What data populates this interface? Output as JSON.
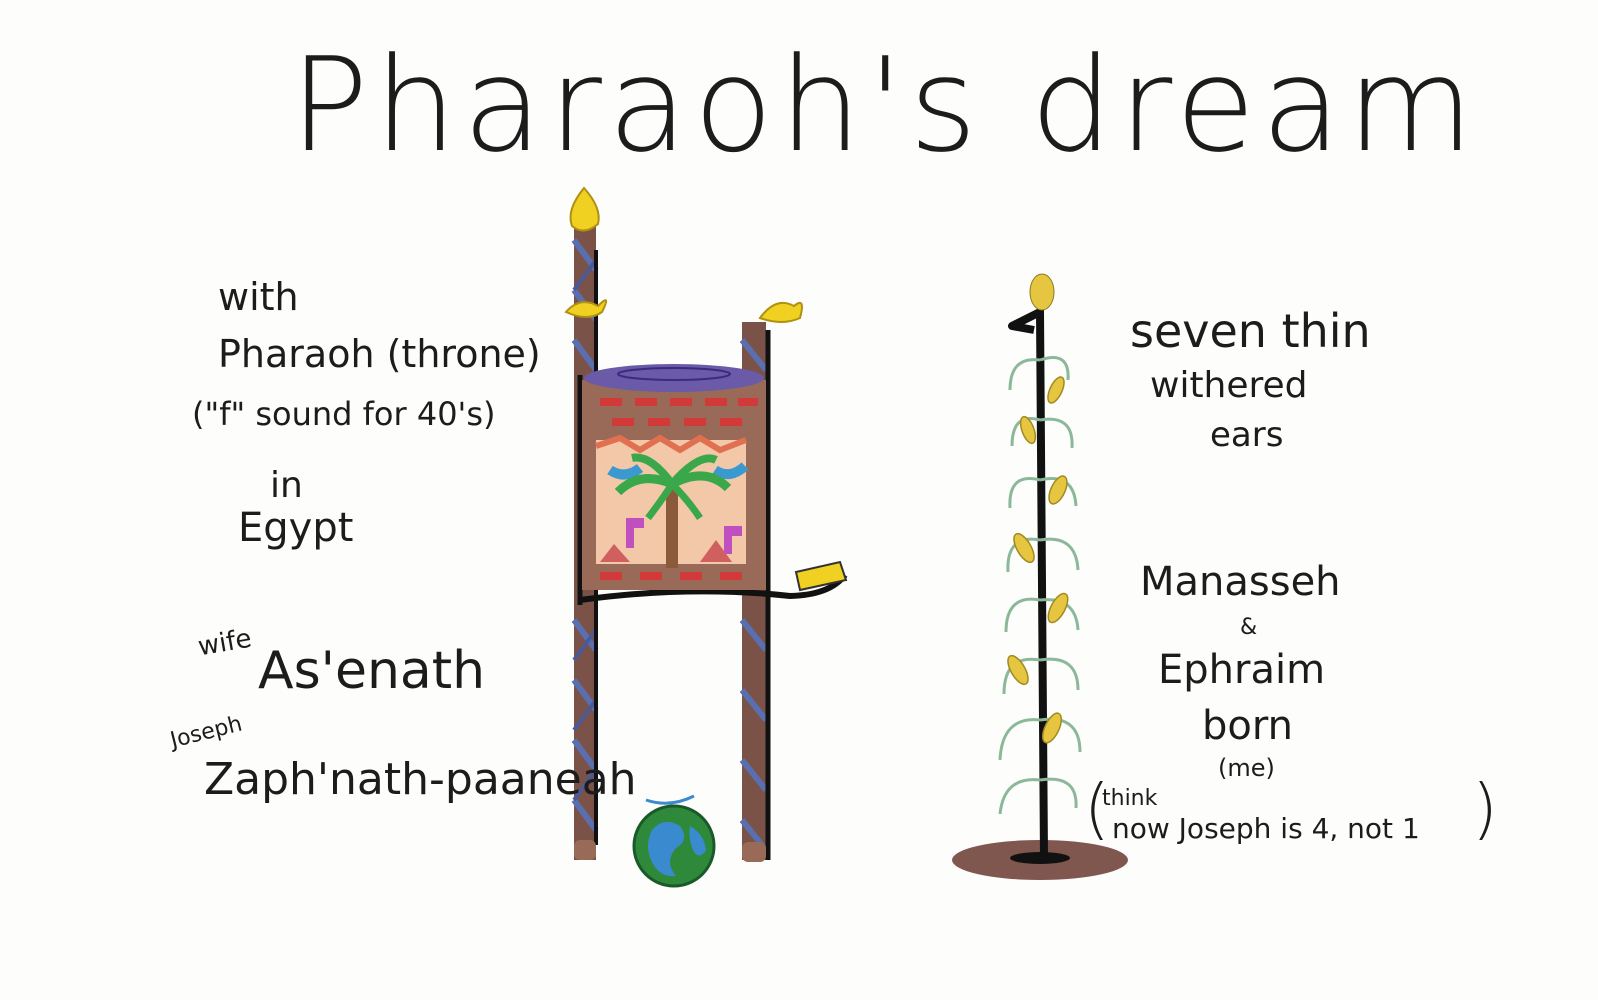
{
  "title": "Pharaoh's dream",
  "left_notes": {
    "line1": "with",
    "line2": "Pharaoh (throne)",
    "line3": "(\"f\" sound for 40's)",
    "line4": "in",
    "line5": "Egypt"
  },
  "names": {
    "wife_label": "wife",
    "wife_name": "As'enath",
    "joseph_label": "Joseph",
    "joseph_name": "Zaph'nath-paaneah"
  },
  "right_notes": {
    "line1": "seven thin",
    "line2": "withered",
    "line3": "ears",
    "line4": "Manasseh",
    "line5": "&",
    "line6": "Ephraim",
    "line7": "born",
    "line8": "(me)",
    "think_label": "think",
    "think_text": "now Joseph is 4, not 1"
  },
  "stalk_numeral": "1",
  "colors": {
    "ink": "#1c1c1c",
    "flame": "#f0d020",
    "column_brown": "#7a4a3a",
    "column_blue": "#5a6fb0",
    "cushion_purple": "#6a5aa8",
    "brick_red": "#d23a3a",
    "palm_green": "#3aa84a",
    "earth_blue": "#3a8ad0",
    "earth_green": "#2e8a3a",
    "corn_yellow": "#e6c640",
    "leaf_green": "#8cb89a",
    "soil_brown": "#6a3a30"
  }
}
